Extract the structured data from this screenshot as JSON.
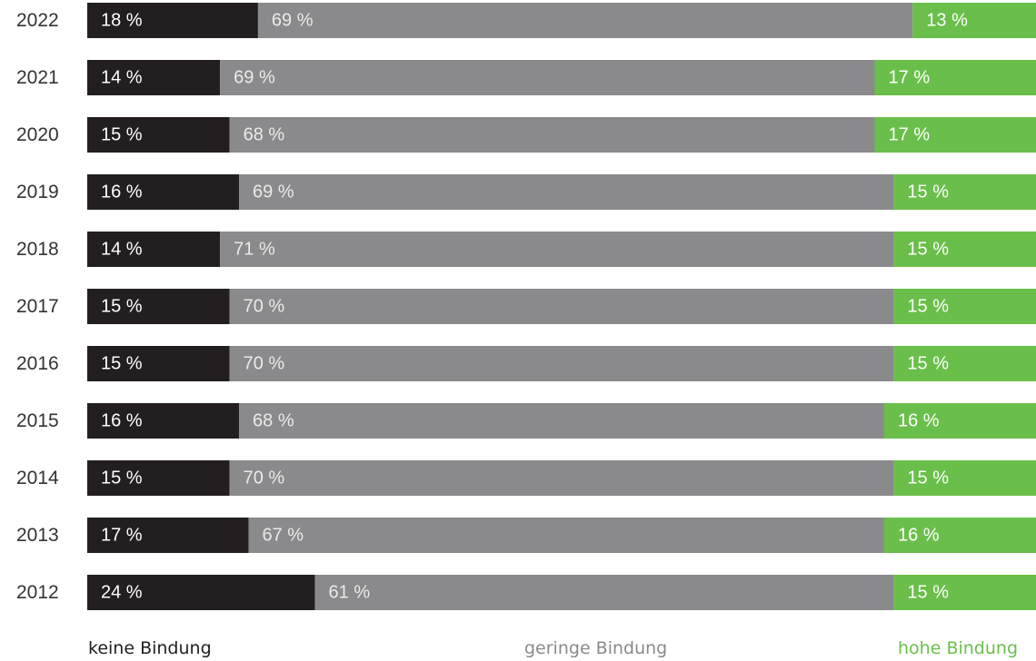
{
  "chart_data": {
    "type": "bar",
    "orientation": "horizontal",
    "stacked": true,
    "percent_stacked": true,
    "categories": [
      "2022",
      "2021",
      "2020",
      "2019",
      "2018",
      "2017",
      "2016",
      "2015",
      "2014",
      "2013",
      "2012"
    ],
    "series": [
      {
        "name": "keine Bindung",
        "color": "#231f20",
        "values": [
          18,
          14,
          15,
          16,
          14,
          15,
          15,
          16,
          15,
          17,
          24
        ],
        "labels": [
          "18 %",
          "14 %",
          "15 %",
          "16 %",
          "14 %",
          "15 %",
          "15 %",
          "16 %",
          "15 %",
          "17 %",
          "24 %"
        ]
      },
      {
        "name": "geringe Bindung",
        "color": "#8a8a8c",
        "values": [
          69,
          69,
          68,
          69,
          71,
          70,
          70,
          68,
          70,
          67,
          61
        ],
        "labels": [
          "69 %",
          "69 %",
          "68 %",
          "69 %",
          "71 %",
          "70 %",
          "70 %",
          "68 %",
          "70 %",
          "67 %",
          "61 %"
        ]
      },
      {
        "name": "hohe Bindung",
        "color": "#6abf4b",
        "values": [
          13,
          17,
          17,
          15,
          15,
          15,
          15,
          16,
          15,
          16,
          15
        ],
        "labels": [
          "13 %",
          "17 %",
          "17 %",
          "15 %",
          "15 %",
          "15 %",
          "15 %",
          "16 %",
          "15 %",
          "16 %",
          "15 %"
        ]
      }
    ],
    "xlim": [
      0,
      100
    ],
    "grid": false,
    "legend_placement": "bottom"
  }
}
